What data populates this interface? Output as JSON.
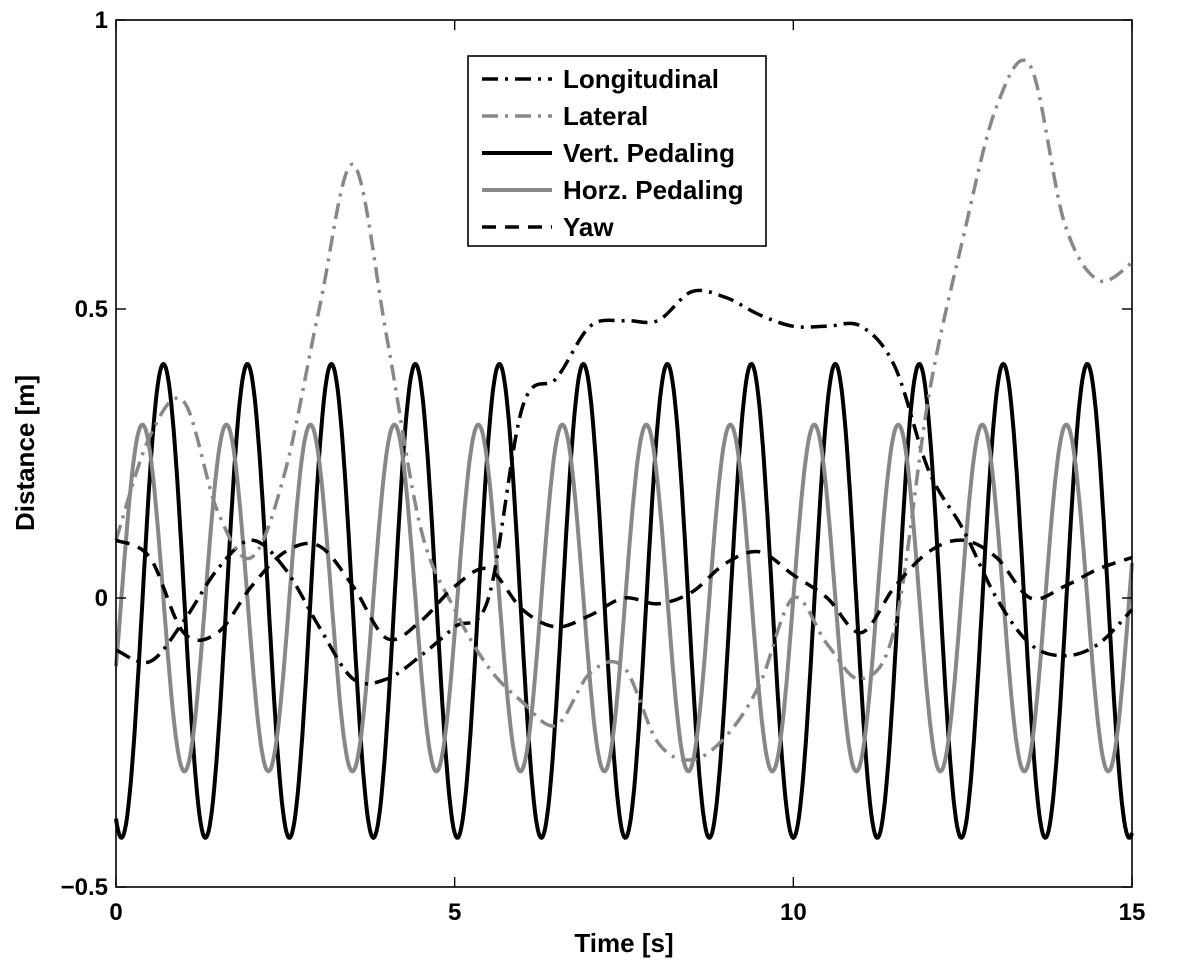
{
  "chart_data": {
    "type": "line",
    "xlabel": "Time [s]",
    "ylabel": "Distance [m]",
    "xlim": [
      0,
      15
    ],
    "ylim": [
      -0.5,
      1
    ],
    "xticks": [
      0,
      5,
      10,
      15
    ],
    "xtick_labels": [
      "0",
      "5",
      "10",
      "15"
    ],
    "yticks": [
      -0.5,
      0,
      0.5,
      1
    ],
    "ytick_labels": [
      "−0.5",
      "0",
      "0.5",
      "1"
    ],
    "grid": false,
    "legend_position": "top-center",
    "series": [
      {
        "name": "Longitudinal",
        "color": "#000000",
        "style": "dashdot",
        "x": [
          0,
          0.5,
          1,
          1.5,
          2,
          2.5,
          3,
          3.5,
          4,
          4.5,
          5,
          5.5,
          6,
          6.5,
          7,
          7.5,
          8,
          8.5,
          9,
          9.5,
          10,
          10.5,
          11,
          11.5,
          12,
          12.5,
          13,
          13.5,
          14,
          14.5,
          15
        ],
        "y": [
          -0.09,
          -0.11,
          -0.04,
          0.05,
          0.1,
          0.05,
          -0.05,
          -0.14,
          -0.14,
          -0.1,
          -0.05,
          0,
          0.33,
          0.38,
          0.47,
          0.48,
          0.48,
          0.53,
          0.52,
          0.49,
          0.47,
          0.47,
          0.47,
          0.4,
          0.22,
          0.12,
          0,
          -0.08,
          -0.1,
          -0.08,
          -0.02
        ]
      },
      {
        "name": "Lateral",
        "color": "#888888",
        "style": "dashdot",
        "x": [
          0,
          0.5,
          1,
          1.5,
          2,
          2.5,
          3,
          3.5,
          4,
          4.5,
          5,
          5.5,
          6,
          6.5,
          7,
          7.5,
          8,
          8.5,
          9,
          9.5,
          10,
          10.5,
          11,
          11.5,
          12,
          12.5,
          13,
          13.5,
          14,
          14.5,
          15
        ],
        "y": [
          0.1,
          0.28,
          0.34,
          0.15,
          0.07,
          0.22,
          0.5,
          0.75,
          0.45,
          0.12,
          -0.02,
          -0.12,
          -0.18,
          -0.22,
          -0.13,
          -0.12,
          -0.25,
          -0.28,
          -0.24,
          -0.15,
          0.0,
          -0.08,
          -0.14,
          -0.05,
          0.35,
          0.62,
          0.85,
          0.92,
          0.65,
          0.55,
          0.58
        ]
      },
      {
        "name": "Vert. Pedaling",
        "color": "#000000",
        "style": "solid",
        "amplitude": 0.41,
        "period": 1.24,
        "phase_s": 0.08,
        "offset": -0.005,
        "x_range": [
          0,
          15
        ]
      },
      {
        "name": "Horz. Pedaling",
        "color": "#888888",
        "style": "solid",
        "amplitude": 0.3,
        "period": 1.24,
        "phase_s": -0.23,
        "offset": 0,
        "x_range": [
          0,
          15
        ]
      },
      {
        "name": "Yaw",
        "color": "#000000",
        "style": "dashed",
        "x": [
          0,
          0.5,
          1,
          1.5,
          2,
          2.5,
          3,
          3.5,
          4,
          4.5,
          5,
          5.5,
          6,
          6.5,
          7,
          7.5,
          8,
          8.5,
          9,
          9.5,
          10,
          10.5,
          11,
          11.5,
          12,
          12.5,
          13,
          13.5,
          14,
          14.5,
          15
        ],
        "y": [
          0.1,
          0.07,
          -0.06,
          -0.06,
          0.02,
          0.08,
          0.09,
          0.02,
          -0.07,
          -0.04,
          0.02,
          0.05,
          -0.02,
          -0.05,
          -0.03,
          0.0,
          -0.01,
          0.01,
          0.06,
          0.08,
          0.04,
          0.0,
          -0.06,
          0.02,
          0.08,
          0.1,
          0.07,
          0.0,
          0.02,
          0.05,
          0.07
        ]
      }
    ]
  }
}
